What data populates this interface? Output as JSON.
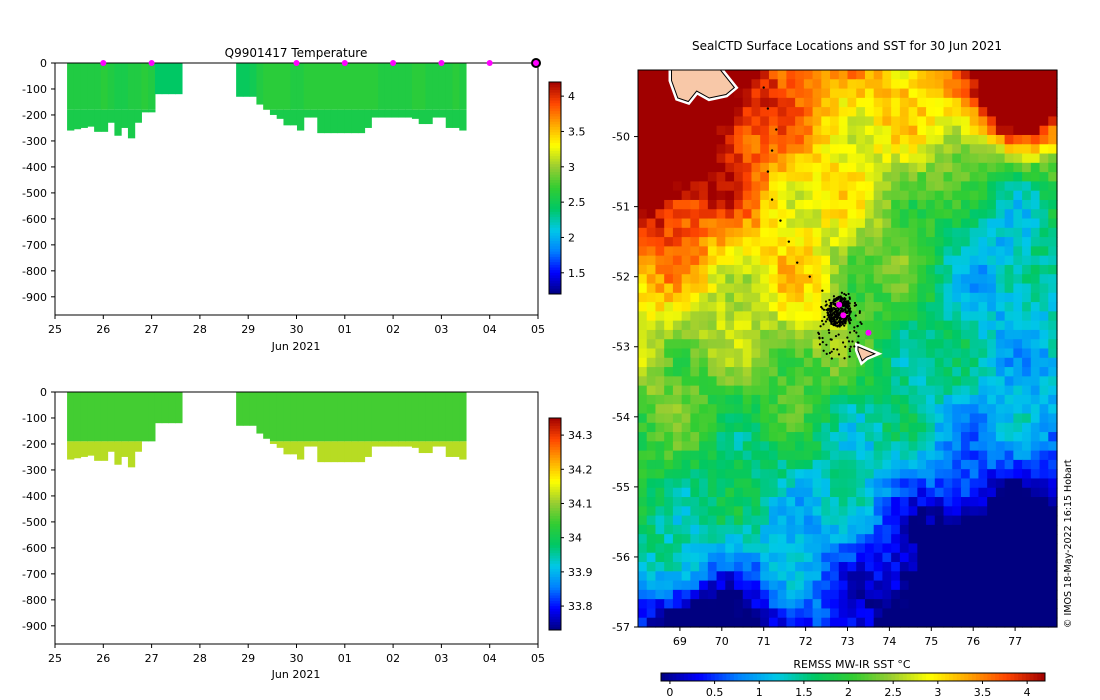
{
  "chart_data": [
    {
      "type": "heatmap",
      "title": "Q9901417  Temperature",
      "xlabel": "Jun 2021",
      "ylabel": "",
      "x_tick_labels": [
        "25",
        "26",
        "27",
        "28",
        "29",
        "30",
        "01",
        "02",
        "03",
        "04",
        "05"
      ],
      "x_range_days": [
        0,
        10
      ],
      "y_tick_labels": [
        "0",
        "-100",
        "-200",
        "-300",
        "-400",
        "-500",
        "-600",
        "-700",
        "-800",
        "-900"
      ],
      "ylim": [
        -970,
        0
      ],
      "colorbar": {
        "range": [
          1.2,
          4.2
        ],
        "tick_labels": [
          "4",
          "3.5",
          "3",
          "2.5",
          "2",
          "1.5"
        ],
        "colors": [
          "#000080",
          "#0000ff",
          "#0080ff",
          "#00c8e8",
          "#00c864",
          "#32cd32",
          "#9acd32",
          "#ffff00",
          "#ffa500",
          "#ff4500",
          "#a00000"
        ]
      },
      "profile_markers_day": [
        1,
        2,
        5,
        6,
        7,
        8,
        9,
        10
      ],
      "profiles": {
        "start_day": 0.25,
        "step_day": 0.14,
        "depths": [
          260,
          255,
          250,
          245,
          265,
          265,
          230,
          280,
          250,
          290,
          230,
          190,
          190,
          120,
          120,
          120,
          120,
          0,
          0,
          0,
          0,
          0,
          0,
          0,
          0,
          130,
          130,
          130,
          160,
          180,
          200,
          215,
          240,
          240,
          260,
          210,
          210,
          270,
          270,
          270,
          270,
          270,
          270,
          270,
          250,
          210,
          210,
          210,
          210,
          210,
          210,
          215,
          235,
          235,
          210,
          210,
          250,
          250,
          260
        ],
        "values": [
          2.6,
          2.6,
          2.6,
          2.6,
          2.6,
          2.65,
          2.6,
          2.55,
          2.55,
          2.6,
          2.6,
          2.65,
          2.6,
          2.4,
          2.4,
          2.4,
          2.4,
          null,
          null,
          null,
          null,
          null,
          null,
          null,
          null,
          2.45,
          2.45,
          2.5,
          2.6,
          2.65,
          2.65,
          2.65,
          2.65,
          2.6,
          2.6,
          2.65,
          2.65,
          2.65,
          2.65,
          2.65,
          2.65,
          2.65,
          2.65,
          2.65,
          2.65,
          2.65,
          2.6,
          2.6,
          2.6,
          2.6,
          2.6,
          2.65,
          2.65,
          2.6,
          2.6,
          2.6,
          2.6,
          2.65,
          2.6
        ],
        "deep_layer": {
          "from_depth": 180,
          "value": 2.55
        }
      }
    },
    {
      "type": "heatmap",
      "title": "",
      "xlabel": "Jun 2021",
      "ylabel": "",
      "x_tick_labels": [
        "25",
        "26",
        "27",
        "28",
        "29",
        "30",
        "01",
        "02",
        "03",
        "04",
        "05"
      ],
      "x_range_days": [
        0,
        10
      ],
      "y_tick_labels": [
        "0",
        "-100",
        "-200",
        "-300",
        "-400",
        "-500",
        "-600",
        "-700",
        "-800",
        "-900"
      ],
      "ylim": [
        -970,
        0
      ],
      "colorbar": {
        "range": [
          33.73,
          34.35
        ],
        "tick_labels": [
          "34.3",
          "34.2",
          "34.1",
          "34",
          "33.9",
          "33.8"
        ],
        "colors": [
          "#000080",
          "#0000ff",
          "#0080ff",
          "#00c8e8",
          "#00c864",
          "#32cd32",
          "#9acd32",
          "#ffff00",
          "#ffa500",
          "#ff4500",
          "#a00000"
        ]
      },
      "profiles": {
        "start_day": 0.25,
        "step_day": 0.14,
        "depths": [
          260,
          255,
          250,
          245,
          265,
          265,
          230,
          280,
          250,
          290,
          230,
          190,
          190,
          120,
          120,
          120,
          120,
          0,
          0,
          0,
          0,
          0,
          0,
          0,
          0,
          130,
          130,
          130,
          160,
          180,
          200,
          215,
          240,
          240,
          260,
          210,
          210,
          270,
          270,
          270,
          270,
          270,
          270,
          270,
          250,
          210,
          210,
          210,
          210,
          210,
          210,
          215,
          235,
          235,
          210,
          210,
          250,
          250,
          260
        ],
        "values": [
          34.05,
          34.05,
          34.05,
          34.05,
          34.05,
          34.05,
          34.05,
          34.05,
          34.05,
          34.05,
          34.05,
          34.05,
          34.05,
          34.05,
          34.05,
          34.05,
          34.05,
          null,
          null,
          null,
          null,
          null,
          null,
          null,
          null,
          34.05,
          34.05,
          34.05,
          34.05,
          34.05,
          34.05,
          34.05,
          34.05,
          34.05,
          34.05,
          34.05,
          34.05,
          34.05,
          34.05,
          34.05,
          34.05,
          34.05,
          34.05,
          34.05,
          34.05,
          34.05,
          34.05,
          34.05,
          34.05,
          34.05,
          34.05,
          34.05,
          34.05,
          34.05,
          34.05,
          34.05,
          34.05,
          34.05,
          34.05
        ],
        "deep_layer": {
          "from_depth": 190,
          "value": 34.12
        }
      }
    },
    {
      "type": "heatmap",
      "title": "SealCTD Surface Locations and SST for 30 Jun 2021",
      "xlabel": "",
      "ylabel": "",
      "x_tick_labels": [
        "69",
        "70",
        "71",
        "72",
        "73",
        "74",
        "75",
        "76",
        "77"
      ],
      "xlim": [
        68.0,
        78.0
      ],
      "y_tick_labels": [
        "-50",
        "-51",
        "-52",
        "-53",
        "-54",
        "-55",
        "-56",
        "-57"
      ],
      "ylim": [
        -57.0,
        -49.05
      ],
      "colorbar": {
        "label": "REMSS MW-IR SST °C",
        "range": [
          -0.1,
          4.2
        ],
        "tick_labels": [
          "0",
          "0.5",
          "1",
          "1.5",
          "2",
          "2.5",
          "3",
          "3.5",
          "4"
        ],
        "colors": [
          "#000080",
          "#0000ff",
          "#0080ff",
          "#00c8e8",
          "#00c864",
          "#32cd32",
          "#9acd32",
          "#ffff00",
          "#ffa500",
          "#ff4500",
          "#a00000"
        ]
      },
      "sst_features": {
        "warm_northwest_center": [
          68.5,
          -49.6
        ],
        "warm_corner_center": [
          77.2,
          -49.4
        ],
        "cold_southeast_center": [
          76.5,
          -56.6
        ],
        "cold_southwest_center": [
          69.5,
          -57.0
        ]
      },
      "seal_cluster_center": [
        72.8,
        -52.5
      ],
      "seal_track_points": [
        [
          71.0,
          -49.3
        ],
        [
          71.1,
          -49.6
        ],
        [
          71.3,
          -49.9
        ],
        [
          71.2,
          -50.2
        ],
        [
          71.1,
          -50.5
        ],
        [
          71.2,
          -50.9
        ],
        [
          71.4,
          -51.2
        ],
        [
          71.6,
          -51.5
        ],
        [
          71.8,
          -51.8
        ],
        [
          72.1,
          -52.0
        ],
        [
          72.4,
          -52.2
        ]
      ],
      "magenta_markers": [
        [
          72.8,
          -52.4
        ],
        [
          72.9,
          -52.55
        ],
        [
          73.5,
          -52.8
        ]
      ],
      "land": [
        {
          "name": "Heard Island region",
          "points": [
            [
              68.8,
              -49.0
            ],
            [
              69.9,
              -49.0
            ],
            [
              70.3,
              -49.3
            ],
            [
              70.1,
              -49.4
            ],
            [
              69.7,
              -49.45
            ],
            [
              69.4,
              -49.35
            ],
            [
              69.2,
              -49.5
            ],
            [
              68.95,
              -49.45
            ],
            [
              68.8,
              -49.2
            ]
          ]
        },
        {
          "name": "McDonald Islands",
          "points": [
            [
              73.25,
              -53.0
            ],
            [
              73.65,
              -53.1
            ],
            [
              73.45,
              -53.15
            ],
            [
              73.35,
              -53.2
            ],
            [
              73.25,
              -53.05
            ]
          ]
        }
      ]
    }
  ],
  "credit": "© IMOS 18-May-2022 16:15 Hobart"
}
